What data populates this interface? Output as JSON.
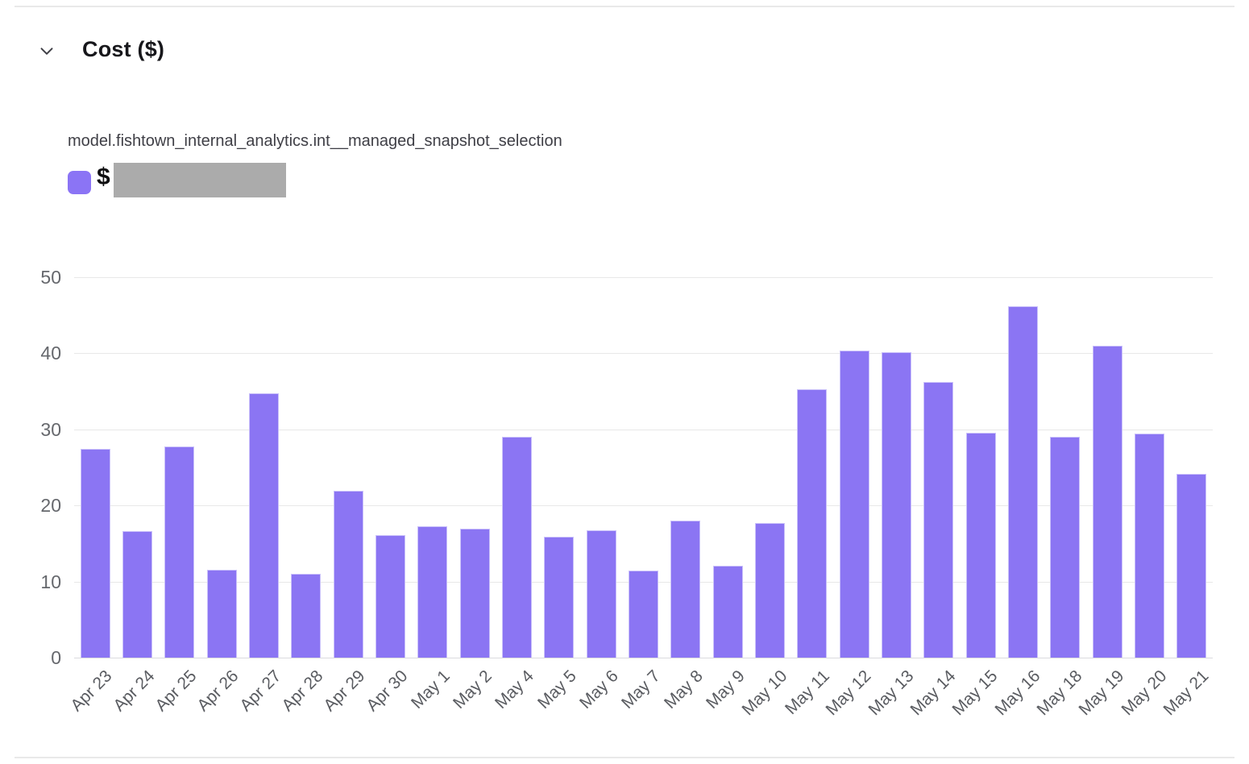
{
  "header": {
    "title": "Cost ($)",
    "collapse_icon": "chevron-down"
  },
  "legend": {
    "series_name": "model.fishtown_internal_analytics.int__managed_snapshot_selection",
    "value_prefix": "$",
    "value_redacted": true,
    "swatch_color": "#8B74F5",
    "redaction_color": "#ABABAB"
  },
  "colors": {
    "bar": "#8B75F3",
    "gridline": "#E8E8E8",
    "divider": "#E9E9E9",
    "y_tick_label": "#66686D",
    "x_tick_label": "#5A5C61",
    "title_text": "#17171B"
  },
  "chart_data": {
    "type": "bar",
    "title": "Cost ($)",
    "series_name": "model.fishtown_internal_analytics.int__managed_snapshot_selection",
    "categories": [
      "Apr 23",
      "Apr 24",
      "Apr 25",
      "Apr 26",
      "Apr 27",
      "Apr 28",
      "Apr 29",
      "Apr 30",
      "May 1",
      "May 2",
      "May 4",
      "May 5",
      "May 6",
      "May 7",
      "May 8",
      "May 9",
      "May 10",
      "May 11",
      "May 12",
      "May 13",
      "May 14",
      "May 15",
      "May 16",
      "May 18",
      "May 19",
      "May 20",
      "May 21"
    ],
    "values": [
      27.4,
      16.6,
      27.8,
      11.5,
      34.7,
      11.0,
      21.9,
      16.1,
      17.3,
      16.9,
      29.0,
      15.9,
      16.7,
      11.4,
      18.0,
      12.1,
      17.7,
      35.3,
      40.4,
      40.2,
      36.2,
      29.6,
      46.2,
      29.0,
      41.0,
      29.5,
      24.2
    ],
    "xlabel": "",
    "ylabel": "",
    "ylim": [
      0,
      50
    ],
    "yticks": [
      0,
      10,
      20,
      30,
      40,
      50
    ],
    "grid": true,
    "x_tick_rotation": -45,
    "legend_position": "top-left",
    "bar_color": "#8B75F3"
  }
}
